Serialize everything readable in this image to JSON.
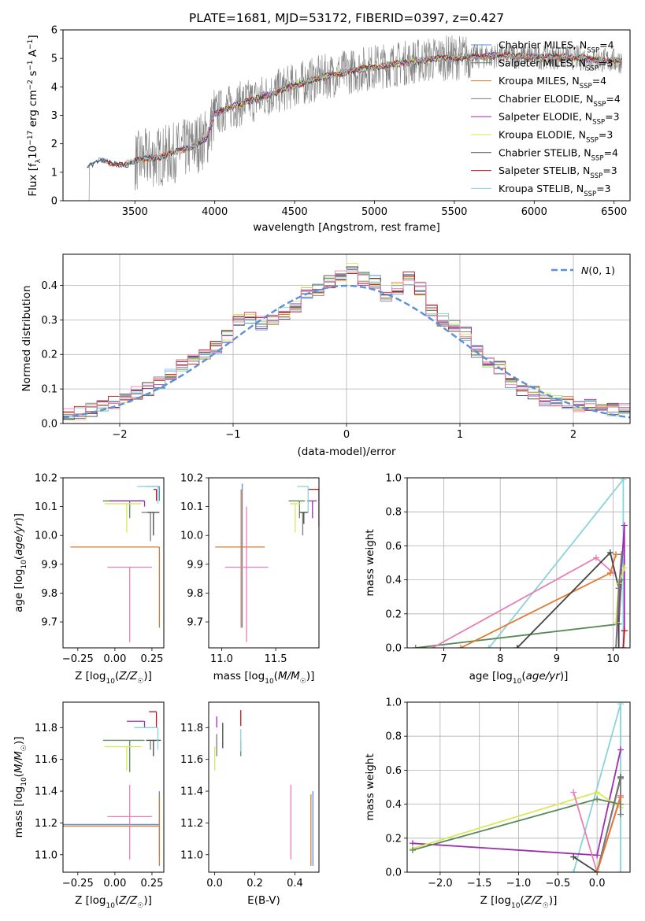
{
  "title": "PLATE=1681, MJD=53172, FIBERID=0397, z=0.427",
  "colors": {
    "chabrier_miles": "#5b8fd9",
    "salpeter_miles": "#5a8a5a",
    "kroupa_miles": "#e07a2e",
    "chabrier_elodie": "#7a7a7a",
    "salpeter_elodie": "#9b2fb0",
    "kroupa_elodie": "#d9e85a",
    "chabrier_stelib": "#444444",
    "salpeter_stelib": "#c0141c",
    "kroupa_stelib": "#8ad3dc",
    "pink": "#e87fb4",
    "data": "#808080",
    "normal": "#5b8fd9"
  },
  "chart_data": [
    {
      "id": "spectrum",
      "type": "line",
      "xlabel": "wavelength [Angstrom, rest frame]",
      "ylabel": "Flux [f_λ 10^-17 erg cm^-2 s^-1 A^-1]",
      "xlim": [
        3050,
        6600
      ],
      "ylim": [
        0,
        6
      ],
      "xticks": [
        3500,
        4000,
        4500,
        5000,
        5500,
        6000,
        6500
      ],
      "yticks": [
        0,
        1,
        2,
        3,
        4,
        5,
        6
      ],
      "grid": false,
      "legend_position": "top-right",
      "legend": [
        {
          "label": "Chabrier MILES, N_SSP=4",
          "color_key": "chabrier_miles"
        },
        {
          "label": "Salpeter MILES, N_SSP=3",
          "color_key": "salpeter_miles"
        },
        {
          "label": "Kroupa MILES, N_SSP=4",
          "color_key": "kroupa_miles"
        },
        {
          "label": "Chabrier ELODIE, N_SSP=4",
          "color_key": "chabrier_elodie"
        },
        {
          "label": "Salpeter ELODIE, N_SSP=3",
          "color_key": "salpeter_elodie"
        },
        {
          "label": "Kroupa ELODIE, N_SSP=3",
          "color_key": "kroupa_elodie"
        },
        {
          "label": "Chabrier STELIB, N_SSP=4",
          "color_key": "chabrier_stelib"
        },
        {
          "label": "Salpeter STELIB, N_SSP=3",
          "color_key": "salpeter_stelib"
        },
        {
          "label": "Kroupa STELIB, N_SSP=3",
          "color_key": "kroupa_stelib"
        }
      ],
      "model_continuum": {
        "x": [
          3200,
          3280,
          3350,
          3450,
          3550,
          3700,
          3850,
          3950,
          4000,
          4100,
          4250,
          4400,
          4500,
          4650,
          4800,
          5000,
          5200,
          5400,
          5600,
          5800,
          6000,
          6200,
          6400,
          6550
        ],
        "y": [
          1.25,
          1.4,
          1.3,
          1.3,
          1.45,
          1.6,
          1.9,
          2.2,
          3.05,
          3.3,
          3.55,
          3.85,
          4.05,
          4.3,
          4.5,
          4.7,
          4.85,
          5.0,
          5.05,
          5.1,
          5.05,
          5.05,
          4.95,
          4.9
        ]
      },
      "data_noise_amplitude": 0.9
    },
    {
      "id": "residuals",
      "type": "histogram",
      "xlabel": "(data-model)/error",
      "ylabel": "Normed distribution",
      "xlim": [
        -2.5,
        2.5
      ],
      "ylim": [
        0,
        0.49
      ],
      "xticks": [
        -2,
        -1,
        0,
        1,
        2
      ],
      "yticks": [
        0,
        0.1,
        0.2,
        0.3,
        0.4
      ],
      "grid": true,
      "legend_position": "top-right",
      "legend": [
        {
          "label": "N(0,1)",
          "color_key": "normal",
          "style": "dashed"
        }
      ],
      "bin_start": -2.5,
      "bin_width": 0.1,
      "histogram_base": [
        0.03,
        0.03,
        0.04,
        0.05,
        0.06,
        0.07,
        0.09,
        0.1,
        0.12,
        0.14,
        0.17,
        0.19,
        0.2,
        0.22,
        0.25,
        0.3,
        0.31,
        0.29,
        0.3,
        0.32,
        0.34,
        0.38,
        0.39,
        0.41,
        0.43,
        0.45,
        0.42,
        0.41,
        0.37,
        0.39,
        0.42,
        0.39,
        0.33,
        0.3,
        0.28,
        0.26,
        0.21,
        0.18,
        0.16,
        0.12,
        0.1,
        0.09,
        0.07,
        0.07,
        0.06,
        0.05,
        0.05,
        0.04,
        0.04,
        0.04
      ]
    },
    {
      "id": "age_vs_Z",
      "type": "errorbar",
      "xlabel": "Z [log10(Z/Z☉)]",
      "ylabel": "age  [log10(age/yr)]",
      "xlim": [
        -0.35,
        0.33
      ],
      "ylim": [
        9.61,
        10.2
      ],
      "xticks": [
        -0.25,
        0.0,
        0.25
      ],
      "yticks": [
        9.7,
        9.8,
        9.9,
        10.0,
        10.1,
        10.2
      ],
      "points": [
        {
          "k": "chabrier_miles",
          "x": 0.3,
          "y": 10.17,
          "xe": [
            0.1,
            0.0
          ],
          "ye": [
            0.05,
            0.0
          ]
        },
        {
          "k": "salpeter_miles",
          "x": 0.1,
          "y": 10.12,
          "xe": [
            0.18,
            0.1
          ],
          "ye": [
            0.06,
            0.0
          ]
        },
        {
          "k": "kroupa_miles",
          "x": 0.3,
          "y": 9.96,
          "xe": [
            0.6,
            0.0
          ],
          "ye": [
            0.28,
            0.0
          ]
        },
        {
          "k": "chabrier_elodie",
          "x": 0.24,
          "y": 10.08,
          "xe": [
            0.06,
            0.0
          ],
          "ye": [
            0.1,
            0.0
          ]
        },
        {
          "k": "salpeter_elodie",
          "x": 0.2,
          "y": 10.12,
          "xe": [
            0.24,
            0.0
          ],
          "ye": [
            0.02,
            0.0
          ]
        },
        {
          "k": "kroupa_elodie",
          "x": 0.08,
          "y": 10.11,
          "xe": [
            0.15,
            0.1
          ],
          "ye": [
            0.1,
            0.0
          ]
        },
        {
          "k": "chabrier_stelib",
          "x": 0.26,
          "y": 10.08,
          "xe": [
            0.04,
            0.04
          ],
          "ye": [
            0.08,
            0.0
          ]
        },
        {
          "k": "salpeter_stelib",
          "x": 0.28,
          "y": 10.16,
          "xe": [
            0.02,
            0.0
          ],
          "ye": [
            0.04,
            0.0
          ]
        },
        {
          "k": "kroupa_stelib",
          "x": 0.29,
          "y": 10.17,
          "xe": [
            0.14,
            0.0
          ],
          "ye": [
            0.06,
            0.0
          ]
        },
        {
          "k": "pink",
          "x": 0.1,
          "y": 9.89,
          "xe": [
            0.15,
            0.15
          ],
          "ye": [
            0.26,
            0.0
          ]
        }
      ]
    },
    {
      "id": "age_vs_mass",
      "type": "errorbar",
      "xlabel": "mass [log10(M/M☉)]",
      "ylabel": "",
      "xlim": [
        10.88,
        11.9
      ],
      "ylim": [
        9.61,
        10.2
      ],
      "xticks": [
        11.0,
        11.5
      ],
      "yticks": [
        9.7,
        9.8,
        9.9,
        10.0,
        10.1,
        10.2
      ],
      "points": [
        {
          "k": "chabrier_miles",
          "x": 11.19,
          "y": 9.96,
          "xe": [
            0.0,
            0.0
          ],
          "ye": [
            0.28,
            0.22
          ]
        },
        {
          "k": "salpeter_miles",
          "x": 11.72,
          "y": 10.12,
          "xe": [
            0.1,
            0.05
          ],
          "ye": [
            0.06,
            0.0
          ]
        },
        {
          "k": "kroupa_miles",
          "x": 11.18,
          "y": 9.96,
          "xe": [
            0.24,
            0.22
          ],
          "ye": [
            0.28,
            0.2
          ]
        },
        {
          "k": "chabrier_elodie",
          "x": 11.75,
          "y": 10.08,
          "xe": [
            0.0,
            0.0
          ],
          "ye": [
            0.08,
            0.0
          ]
        },
        {
          "k": "salpeter_elodie",
          "x": 11.84,
          "y": 10.12,
          "xe": [
            0.05,
            0.04
          ],
          "ye": [
            0.06,
            0.0
          ]
        },
        {
          "k": "kroupa_elodie",
          "x": 11.68,
          "y": 10.11,
          "xe": [
            0.05,
            0.05
          ],
          "ye": [
            0.1,
            0.0
          ]
        },
        {
          "k": "chabrier_stelib",
          "x": 11.76,
          "y": 10.08,
          "xe": [
            0.04,
            0.04
          ],
          "ye": [
            0.04,
            0.0
          ]
        },
        {
          "k": "salpeter_stelib",
          "x": 11.9,
          "y": 10.16,
          "xe": [
            0.1,
            0.0
          ],
          "ye": [
            0.13,
            0.0
          ]
        },
        {
          "k": "kroupa_stelib",
          "x": 11.8,
          "y": 10.17,
          "xe": [
            0.1,
            0.0
          ],
          "ye": [
            0.09,
            0.0
          ]
        },
        {
          "k": "pink",
          "x": 11.23,
          "y": 9.89,
          "xe": [
            0.2,
            0.2
          ],
          "ye": [
            0.26,
            0.21
          ]
        }
      ]
    },
    {
      "id": "massweight_vs_age",
      "type": "line",
      "xlabel": "age  [log10(age/yr)]",
      "ylabel": "mass weight",
      "xlim": [
        6.35,
        10.3
      ],
      "ylim": [
        0,
        1
      ],
      "xticks": [
        7,
        8,
        9,
        10
      ],
      "yticks": [
        0.0,
        0.2,
        0.4,
        0.6,
        0.8,
        1.0
      ],
      "grid": true,
      "series": [
        {
          "k": "kroupa_stelib",
          "x": [
            7.8,
            10.18,
            10.18
          ],
          "y": [
            0.0,
            0.99,
            0.0
          ]
        },
        {
          "k": "salpeter_miles",
          "x": [
            6.5,
            10.1,
            10.15
          ],
          "y": [
            0.0,
            0.14,
            0.4
          ]
        },
        {
          "k": "pink",
          "x": [
            6.8,
            9.7,
            10.0
          ],
          "y": [
            0.0,
            0.53,
            0.44
          ]
        },
        {
          "k": "kroupa_miles",
          "x": [
            7.3,
            9.95,
            10.05
          ],
          "y": [
            0.0,
            0.44,
            0.55
          ]
        },
        {
          "k": "chabrier_stelib",
          "x": [
            8.3,
            9.95,
            10.1,
            10.1
          ],
          "y": [
            0.0,
            0.56,
            0.35,
            0.0
          ]
        },
        {
          "k": "salpeter_elodie",
          "x": [
            10.05,
            10.2,
            10.2
          ],
          "y": [
            0.0,
            0.72,
            0.1
          ]
        },
        {
          "k": "kroupa_elodie",
          "x": [
            10.05,
            10.1,
            10.2
          ],
          "y": [
            0.15,
            0.38,
            0.47
          ]
        },
        {
          "k": "chabrier_elodie",
          "x": [
            10.05,
            10.1,
            10.15
          ],
          "y": [
            0.0,
            0.35,
            0.55
          ]
        },
        {
          "k": "salpeter_stelib",
          "x": [
            10.18,
            10.2
          ],
          "y": [
            0.0,
            0.1
          ]
        }
      ]
    },
    {
      "id": "mass_vs_Z",
      "type": "errorbar",
      "xlabel": "Z [log10(Z/Z☉)]",
      "ylabel": "mass [log10(M/M☉)]",
      "xlim": [
        -0.35,
        0.33
      ],
      "ylim": [
        10.89,
        11.96
      ],
      "xticks": [
        -0.25,
        0.0,
        0.25
      ],
      "yticks": [
        11.0,
        11.2,
        11.4,
        11.6,
        11.8
      ],
      "points": [
        {
          "k": "chabrier_miles",
          "x": 0.3,
          "y": 11.19,
          "xe": [
            0.65,
            0.0
          ],
          "ye": [
            0.2,
            0.21
          ]
        },
        {
          "k": "salpeter_miles",
          "x": 0.1,
          "y": 11.72,
          "xe": [
            0.18,
            0.1
          ],
          "ye": [
            0.2,
            0.0
          ]
        },
        {
          "k": "kroupa_miles",
          "x": 0.3,
          "y": 11.18,
          "xe": [
            0.65,
            0.0
          ],
          "ye": [
            0.25,
            0.2
          ]
        },
        {
          "k": "chabrier_elodie",
          "x": 0.24,
          "y": 11.72,
          "xe": [
            0.0,
            0.0
          ],
          "ye": [
            0.06,
            0.0
          ]
        },
        {
          "k": "salpeter_elodie",
          "x": 0.2,
          "y": 11.84,
          "xe": [
            0.12,
            0.0
          ],
          "ye": [
            0.04,
            0.0
          ]
        },
        {
          "k": "kroupa_elodie",
          "x": 0.08,
          "y": 11.68,
          "xe": [
            0.15,
            0.1
          ],
          "ye": [
            0.15,
            0.0
          ]
        },
        {
          "k": "chabrier_stelib",
          "x": 0.26,
          "y": 11.72,
          "xe": [
            0.05,
            0.05
          ],
          "ye": [
            0.1,
            0.0
          ]
        },
        {
          "k": "salpeter_stelib",
          "x": 0.28,
          "y": 11.9,
          "xe": [
            0.05,
            0.0
          ],
          "ye": [
            0.1,
            0.0
          ]
        },
        {
          "k": "kroupa_stelib",
          "x": 0.29,
          "y": 11.8,
          "xe": [
            0.16,
            0.0
          ],
          "ye": [
            0.14,
            0.0
          ]
        },
        {
          "k": "pink",
          "x": 0.1,
          "y": 11.24,
          "xe": [
            0.15,
            0.15
          ],
          "ye": [
            0.27,
            0.2
          ]
        }
      ]
    },
    {
      "id": "mass_vs_ebv",
      "type": "errorbar",
      "xlabel": "E(B-V)",
      "ylabel": "",
      "xlim": [
        -0.03,
        0.52
      ],
      "ylim": [
        10.89,
        11.96
      ],
      "xticks": [
        0.0,
        0.2,
        0.4
      ],
      "yticks": [
        11.0,
        11.2,
        11.4,
        11.6,
        11.8
      ],
      "points": [
        {
          "k": "chabrier_miles",
          "x": 0.49,
          "y": 11.19,
          "xe": [
            0.0,
            0.0
          ],
          "ye": [
            0.26,
            0.21
          ]
        },
        {
          "k": "salpeter_miles",
          "x": 0.13,
          "y": 11.72,
          "xe": [
            0.0,
            0.0
          ],
          "ye": [
            0.1,
            0.0
          ]
        },
        {
          "k": "kroupa_miles",
          "x": 0.48,
          "y": 11.18,
          "xe": [
            0.0,
            0.0
          ],
          "ye": [
            0.25,
            0.2
          ]
        },
        {
          "k": "chabrier_elodie",
          "x": 0.01,
          "y": 11.72,
          "xe": [
            0.0,
            0.0
          ],
          "ye": [
            0.1,
            0.04
          ]
        },
        {
          "k": "salpeter_elodie",
          "x": 0.01,
          "y": 11.84,
          "xe": [
            0.0,
            0.0
          ],
          "ye": [
            0.04,
            0.03
          ]
        },
        {
          "k": "kroupa_elodie",
          "x": 0.0,
          "y": 11.68,
          "xe": [
            0.0,
            0.0
          ],
          "ye": [
            0.15,
            0.0
          ]
        },
        {
          "k": "chabrier_stelib",
          "x": 0.04,
          "y": 11.75,
          "xe": [
            0.0,
            0.0
          ],
          "ye": [
            0.08,
            0.08
          ]
        },
        {
          "k": "salpeter_stelib",
          "x": 0.13,
          "y": 11.86,
          "xe": [
            0.0,
            0.0
          ],
          "ye": [
            0.05,
            0.05
          ]
        },
        {
          "k": "kroupa_stelib",
          "x": 0.13,
          "y": 11.74,
          "xe": [
            0.0,
            0.0
          ],
          "ye": [
            0.09,
            0.05
          ]
        },
        {
          "k": "pink",
          "x": 0.38,
          "y": 11.24,
          "xe": [
            0.0,
            0.0
          ],
          "ye": [
            0.27,
            0.2
          ]
        }
      ]
    },
    {
      "id": "massweight_vs_Z",
      "type": "line",
      "xlabel": "Z [log10(Z/Z☉)]",
      "ylabel": "mass weight",
      "xlim": [
        -2.42,
        0.42
      ],
      "ylim": [
        0,
        1
      ],
      "xticks": [
        -2.0,
        -1.5,
        -1.0,
        -0.5,
        0.0
      ],
      "yticks": [
        0.0,
        0.2,
        0.4,
        0.6,
        0.8,
        1.0
      ],
      "grid": true,
      "series": [
        {
          "k": "kroupa_stelib",
          "x": [
            -0.3,
            0.3,
            0.3
          ],
          "y": [
            0.0,
            0.99,
            0.0
          ]
        },
        {
          "k": "salpeter_elodie",
          "x": [
            -2.35,
            0.0,
            0.3
          ],
          "y": [
            0.17,
            0.1,
            0.72
          ]
        },
        {
          "k": "kroupa_elodie",
          "x": [
            -2.35,
            0.0,
            0.3
          ],
          "y": [
            0.14,
            0.47,
            0.38
          ]
        },
        {
          "k": "salpeter_miles",
          "x": [
            -2.35,
            0.0,
            0.3
          ],
          "y": [
            0.13,
            0.43,
            0.4
          ]
        },
        {
          "k": "pink",
          "x": [
            -0.3,
            0.0,
            0.3
          ],
          "y": [
            0.47,
            0.0,
            0.45
          ]
        },
        {
          "k": "chabrier_stelib",
          "x": [
            -0.3,
            0.0,
            0.3
          ],
          "y": [
            0.09,
            0.0,
            0.56
          ]
        },
        {
          "k": "chabrier_elodie",
          "x": [
            0.0,
            0.3,
            0.3
          ],
          "y": [
            0.0,
            0.55,
            0.34
          ]
        },
        {
          "k": "kroupa_miles",
          "x": [
            0.0,
            0.3
          ],
          "y": [
            0.0,
            0.44
          ]
        }
      ]
    }
  ]
}
